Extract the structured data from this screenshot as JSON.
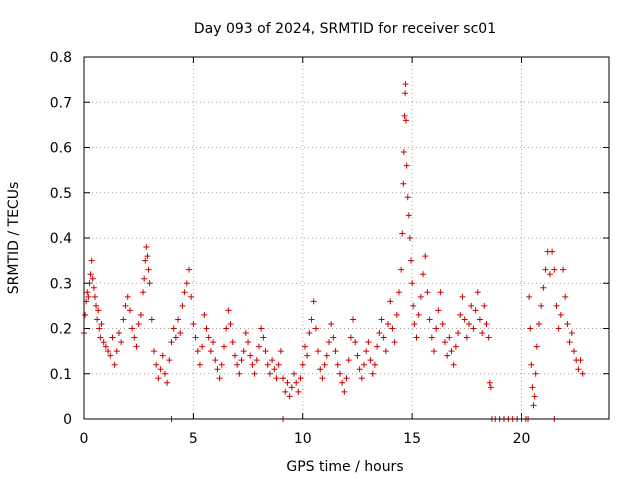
{
  "chart_data": {
    "type": "scatter",
    "title": "Day 093 of 2024, SRMTID for receiver sc01",
    "xlabel": "GPS time / hours",
    "ylabel": "SRMTID / TECUs",
    "xlim": [
      0,
      24
    ],
    "ylim": [
      0,
      0.8
    ],
    "x_ticks": [
      0,
      5,
      10,
      15,
      20
    ],
    "x_tick_labels": [
      "0",
      "5",
      "10",
      "15",
      "20"
    ],
    "y_ticks": [
      0,
      0.1,
      0.2,
      0.3,
      0.4,
      0.5,
      0.6,
      0.7,
      0.8
    ],
    "y_tick_labels": [
      "0",
      "0.1",
      "0.2",
      "0.3",
      "0.4",
      "0.5",
      "0.6",
      "0.7",
      "0.8"
    ],
    "grid": true,
    "marker": "plus",
    "series_color": "#cc0000",
    "series": [
      {
        "name": "SRMTID",
        "points": [
          [
            0.0,
            0.19
          ],
          [
            0.05,
            0.23
          ],
          [
            0.1,
            0.26
          ],
          [
            0.15,
            0.28
          ],
          [
            0.2,
            0.27
          ],
          [
            0.25,
            0.3
          ],
          [
            0.3,
            0.32
          ],
          [
            0.35,
            0.35
          ],
          [
            0.4,
            0.31
          ],
          [
            0.45,
            0.29
          ],
          [
            0.5,
            0.27
          ],
          [
            0.55,
            0.25
          ],
          [
            0.6,
            0.22
          ],
          [
            0.65,
            0.24
          ],
          [
            0.7,
            0.2
          ],
          [
            0.75,
            0.18
          ],
          [
            0.8,
            0.21
          ],
          [
            0.9,
            0.17
          ],
          [
            1.0,
            0.16
          ],
          [
            1.1,
            0.15
          ],
          [
            1.2,
            0.14
          ],
          [
            1.3,
            0.18
          ],
          [
            1.4,
            0.12
          ],
          [
            1.5,
            0.15
          ],
          [
            1.6,
            0.19
          ],
          [
            1.7,
            0.17
          ],
          [
            1.8,
            0.22
          ],
          [
            1.9,
            0.25
          ],
          [
            2.0,
            0.27
          ],
          [
            2.1,
            0.24
          ],
          [
            2.2,
            0.2
          ],
          [
            2.3,
            0.18
          ],
          [
            2.4,
            0.16
          ],
          [
            2.5,
            0.21
          ],
          [
            2.6,
            0.23
          ],
          [
            2.7,
            0.28
          ],
          [
            2.75,
            0.31
          ],
          [
            2.8,
            0.35
          ],
          [
            2.85,
            0.38
          ],
          [
            2.9,
            0.36
          ],
          [
            2.95,
            0.33
          ],
          [
            3.0,
            0.3
          ],
          [
            3.1,
            0.22
          ],
          [
            3.2,
            0.15
          ],
          [
            3.3,
            0.12
          ],
          [
            3.4,
            0.09
          ],
          [
            3.5,
            0.11
          ],
          [
            3.6,
            0.14
          ],
          [
            3.7,
            0.1
          ],
          [
            3.8,
            0.08
          ],
          [
            3.9,
            0.13
          ],
          [
            4.0,
            0.17
          ],
          [
            4.1,
            0.2
          ],
          [
            4.2,
            0.18
          ],
          [
            4.3,
            0.22
          ],
          [
            4.4,
            0.19
          ],
          [
            4.5,
            0.25
          ],
          [
            4.6,
            0.28
          ],
          [
            4.7,
            0.3
          ],
          [
            4.8,
            0.33
          ],
          [
            4.9,
            0.27
          ],
          [
            5.0,
            0.21
          ],
          [
            5.1,
            0.18
          ],
          [
            5.2,
            0.15
          ],
          [
            5.3,
            0.12
          ],
          [
            5.4,
            0.16
          ],
          [
            5.5,
            0.23
          ],
          [
            5.6,
            0.2
          ],
          [
            5.7,
            0.18
          ],
          [
            5.8,
            0.15
          ],
          [
            5.9,
            0.17
          ],
          [
            6.0,
            0.13
          ],
          [
            6.1,
            0.11
          ],
          [
            6.2,
            0.09
          ],
          [
            6.3,
            0.12
          ],
          [
            6.4,
            0.16
          ],
          [
            6.5,
            0.2
          ],
          [
            6.6,
            0.24
          ],
          [
            6.7,
            0.21
          ],
          [
            6.8,
            0.17
          ],
          [
            6.9,
            0.14
          ],
          [
            7.0,
            0.12
          ],
          [
            7.1,
            0.1
          ],
          [
            7.2,
            0.13
          ],
          [
            7.3,
            0.15
          ],
          [
            7.4,
            0.19
          ],
          [
            7.5,
            0.17
          ],
          [
            7.6,
            0.14
          ],
          [
            7.7,
            0.12
          ],
          [
            7.8,
            0.1
          ],
          [
            7.9,
            0.13
          ],
          [
            8.0,
            0.16
          ],
          [
            8.1,
            0.2
          ],
          [
            8.2,
            0.18
          ],
          [
            8.3,
            0.15
          ],
          [
            8.4,
            0.12
          ],
          [
            8.5,
            0.1
          ],
          [
            8.6,
            0.13
          ],
          [
            8.7,
            0.11
          ],
          [
            8.8,
            0.09
          ],
          [
            8.9,
            0.12
          ],
          [
            9.0,
            0.15
          ],
          [
            9.1,
            0.09
          ],
          [
            9.2,
            0.06
          ],
          [
            9.3,
            0.08
          ],
          [
            9.4,
            0.05
          ],
          [
            9.5,
            0.07
          ],
          [
            9.6,
            0.1
          ],
          [
            9.7,
            0.08
          ],
          [
            9.8,
            0.06
          ],
          [
            9.9,
            0.09
          ],
          [
            10.0,
            0.12
          ],
          [
            10.1,
            0.16
          ],
          [
            10.2,
            0.14
          ],
          [
            10.3,
            0.19
          ],
          [
            10.4,
            0.22
          ],
          [
            10.5,
            0.26
          ],
          [
            10.6,
            0.2
          ],
          [
            10.7,
            0.15
          ],
          [
            10.8,
            0.11
          ],
          [
            10.9,
            0.09
          ],
          [
            11.0,
            0.12
          ],
          [
            11.1,
            0.14
          ],
          [
            11.2,
            0.17
          ],
          [
            11.3,
            0.21
          ],
          [
            11.4,
            0.18
          ],
          [
            11.5,
            0.15
          ],
          [
            11.6,
            0.12
          ],
          [
            11.7,
            0.1
          ],
          [
            11.8,
            0.08
          ],
          [
            11.9,
            0.06
          ],
          [
            12.0,
            0.09
          ],
          [
            12.1,
            0.13
          ],
          [
            12.2,
            0.18
          ],
          [
            12.3,
            0.22
          ],
          [
            12.4,
            0.17
          ],
          [
            12.5,
            0.14
          ],
          [
            12.6,
            0.11
          ],
          [
            12.7,
            0.09
          ],
          [
            12.8,
            0.12
          ],
          [
            12.9,
            0.15
          ],
          [
            13.0,
            0.17
          ],
          [
            13.1,
            0.13
          ],
          [
            13.2,
            0.1
          ],
          [
            13.3,
            0.12
          ],
          [
            13.4,
            0.16
          ],
          [
            13.5,
            0.19
          ],
          [
            13.6,
            0.22
          ],
          [
            13.7,
            0.18
          ],
          [
            13.8,
            0.15
          ],
          [
            13.9,
            0.21
          ],
          [
            14.0,
            0.26
          ],
          [
            14.1,
            0.2
          ],
          [
            14.2,
            0.17
          ],
          [
            14.3,
            0.23
          ],
          [
            14.4,
            0.28
          ],
          [
            14.5,
            0.33
          ],
          [
            14.55,
            0.41
          ],
          [
            14.6,
            0.52
          ],
          [
            14.62,
            0.59
          ],
          [
            14.65,
            0.67
          ],
          [
            14.68,
            0.72
          ],
          [
            14.7,
            0.74
          ],
          [
            14.72,
            0.66
          ],
          [
            14.75,
            0.56
          ],
          [
            14.8,
            0.49
          ],
          [
            14.85,
            0.45
          ],
          [
            14.9,
            0.4
          ],
          [
            14.95,
            0.35
          ],
          [
            15.0,
            0.3
          ],
          [
            15.05,
            0.25
          ],
          [
            15.1,
            0.21
          ],
          [
            15.2,
            0.18
          ],
          [
            15.3,
            0.23
          ],
          [
            15.4,
            0.27
          ],
          [
            15.5,
            0.32
          ],
          [
            15.6,
            0.36
          ],
          [
            15.7,
            0.28
          ],
          [
            15.8,
            0.22
          ],
          [
            15.9,
            0.18
          ],
          [
            16.0,
            0.15
          ],
          [
            16.1,
            0.2
          ],
          [
            16.2,
            0.24
          ],
          [
            16.3,
            0.28
          ],
          [
            16.4,
            0.21
          ],
          [
            16.5,
            0.17
          ],
          [
            16.6,
            0.14
          ],
          [
            16.7,
            0.18
          ],
          [
            16.8,
            0.15
          ],
          [
            16.9,
            0.12
          ],
          [
            17.0,
            0.16
          ],
          [
            17.1,
            0.19
          ],
          [
            17.2,
            0.23
          ],
          [
            17.3,
            0.27
          ],
          [
            17.4,
            0.22
          ],
          [
            17.5,
            0.18
          ],
          [
            17.6,
            0.21
          ],
          [
            17.7,
            0.25
          ],
          [
            17.8,
            0.2
          ],
          [
            17.9,
            0.24
          ],
          [
            18.0,
            0.28
          ],
          [
            18.1,
            0.22
          ],
          [
            18.2,
            0.19
          ],
          [
            18.3,
            0.25
          ],
          [
            18.4,
            0.21
          ],
          [
            18.5,
            0.18
          ],
          [
            18.55,
            0.08
          ],
          [
            18.6,
            0.07
          ],
          [
            18.65,
            0.0
          ],
          [
            18.8,
            0.0
          ],
          [
            19.0,
            0.0
          ],
          [
            19.2,
            0.0
          ],
          [
            19.4,
            0.0
          ],
          [
            19.6,
            0.0
          ],
          [
            19.8,
            0.0
          ],
          [
            20.0,
            0.0
          ],
          [
            20.2,
            0.0
          ],
          [
            20.3,
            0.0
          ],
          [
            20.35,
            0.27
          ],
          [
            20.4,
            0.2
          ],
          [
            20.45,
            0.12
          ],
          [
            20.5,
            0.07
          ],
          [
            20.55,
            0.03
          ],
          [
            20.6,
            0.05
          ],
          [
            20.65,
            0.1
          ],
          [
            20.7,
            0.16
          ],
          [
            20.8,
            0.21
          ],
          [
            20.9,
            0.25
          ],
          [
            21.0,
            0.29
          ],
          [
            21.1,
            0.33
          ],
          [
            21.2,
            0.37
          ],
          [
            21.3,
            0.32
          ],
          [
            21.4,
            0.37
          ],
          [
            21.5,
            0.33
          ],
          [
            21.6,
            0.25
          ],
          [
            21.7,
            0.2
          ],
          [
            21.8,
            0.23
          ],
          [
            21.9,
            0.33
          ],
          [
            22.0,
            0.27
          ],
          [
            22.1,
            0.21
          ],
          [
            22.2,
            0.17
          ],
          [
            22.3,
            0.19
          ],
          [
            22.4,
            0.15
          ],
          [
            22.5,
            0.13
          ],
          [
            22.6,
            0.11
          ],
          [
            22.7,
            0.13
          ],
          [
            22.8,
            0.1
          ],
          [
            4.0,
            0.0
          ],
          [
            9.1,
            0.0
          ],
          [
            21.5,
            0.0
          ]
        ]
      }
    ]
  }
}
